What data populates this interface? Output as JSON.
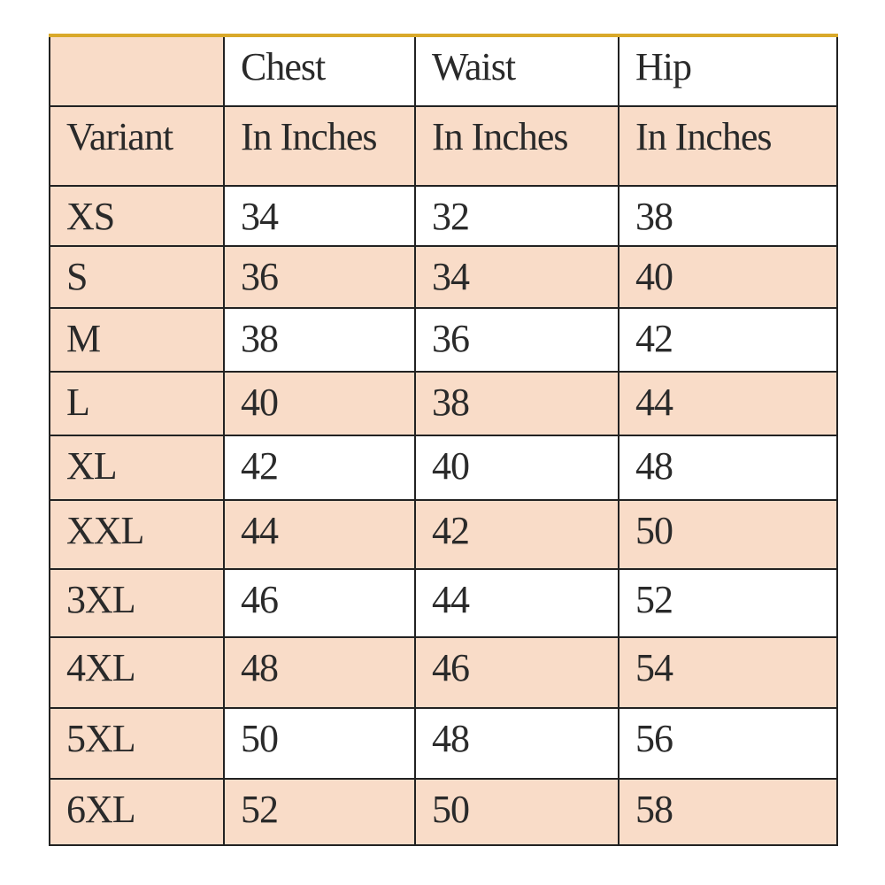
{
  "colors": {
    "header_fill": "#f9dcc8",
    "accent_top_border": "#d9a92a",
    "alt_row_fill": "#ffffff"
  },
  "header": {
    "row1": [
      "",
      "Chest",
      "Waist",
      "Hip"
    ],
    "row2": [
      "Variant",
      "In Inches",
      "In Inches",
      "In Inches"
    ]
  },
  "rows": [
    {
      "variant": "XS",
      "chest": "34",
      "waist": "32",
      "hip": "38"
    },
    {
      "variant": "S",
      "chest": "36",
      "waist": "34",
      "hip": "40"
    },
    {
      "variant": "M",
      "chest": "38",
      "waist": "36",
      "hip": "42"
    },
    {
      "variant": "L",
      "chest": "40",
      "waist": "38",
      "hip": "44"
    },
    {
      "variant": "XL",
      "chest": "42",
      "waist": "40",
      "hip": "48"
    },
    {
      "variant": "XXL",
      "chest": "44",
      "waist": "42",
      "hip": "50"
    },
    {
      "variant": "3XL",
      "chest": "46",
      "waist": "44",
      "hip": "52"
    },
    {
      "variant": "4XL",
      "chest": "48",
      "waist": "46",
      "hip": "54"
    },
    {
      "variant": "5XL",
      "chest": "50",
      "waist": "48",
      "hip": "56"
    },
    {
      "variant": "6XL",
      "chest": "52",
      "waist": "50",
      "hip": "58"
    }
  ]
}
